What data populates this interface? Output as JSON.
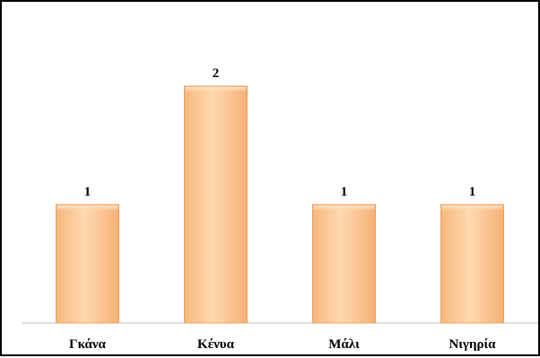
{
  "chart_data": {
    "type": "bar",
    "categories": [
      "Γκάνα",
      "Κένυα",
      "Μάλι",
      "Νιγηρία"
    ],
    "values": [
      1,
      2,
      1,
      1
    ],
    "data_labels": [
      "1",
      "2",
      "1",
      "1"
    ],
    "title": "",
    "xlabel": "",
    "ylabel": "",
    "ylim": [
      0,
      2
    ],
    "grid": false,
    "legend": "none",
    "bar_color": "#FDC896",
    "bar_edge_color": "#E8A060"
  }
}
